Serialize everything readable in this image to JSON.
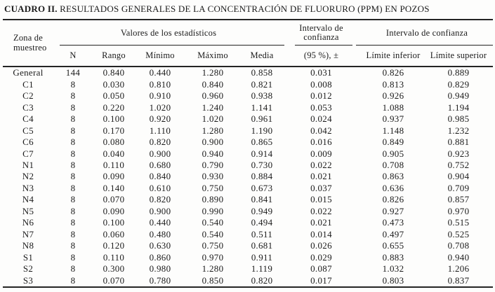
{
  "title": {
    "label": "CUADRO II.",
    "text": "RESULTADOS GENERALES DE LA CONCENTRACIÓN DE FLUORURO (PPM) EN POZOS"
  },
  "table": {
    "zone_header": {
      "line1": "Zona de",
      "line2": "muestreo"
    },
    "groups": {
      "statistics": "Valores de los estadísticos",
      "confidence_interval_pm": {
        "line1": "Intervalo de",
        "line2": "confianza"
      },
      "confidence_interval_limits": "Intervalo de confianza"
    },
    "columns": [
      "N",
      "Rango",
      "Mínimo",
      "Máximo",
      "Media",
      "(95 %), ±",
      "Límite inferior",
      "Límite superior"
    ],
    "rows": [
      {
        "zona": "General",
        "values": [
          "144",
          "0.840",
          "0.440",
          "1.280",
          "0.858",
          "0.031",
          "0.826",
          "0.889"
        ]
      },
      {
        "zona": "C1",
        "values": [
          "8",
          "0.030",
          "0.810",
          "0.840",
          "0.821",
          "0.008",
          "0.813",
          "0.829"
        ]
      },
      {
        "zona": "C2",
        "values": [
          "8",
          "0.050",
          "0.910",
          "0.960",
          "0.938",
          "0.012",
          "0.926",
          "0.949"
        ]
      },
      {
        "zona": "C3",
        "values": [
          "8",
          "0.220",
          "1.020",
          "1.240",
          "1.141",
          "0.053",
          "1.088",
          "1.194"
        ]
      },
      {
        "zona": "C4",
        "values": [
          "8",
          "0.100",
          "0.920",
          "1.020",
          "0.961",
          "0.024",
          "0.937",
          "0.985"
        ]
      },
      {
        "zona": "C5",
        "values": [
          "8",
          "0.170",
          "1.110",
          "1.280",
          "1.190",
          "0.042",
          "1.148",
          "1.232"
        ]
      },
      {
        "zona": "C6",
        "values": [
          "8",
          "0.080",
          "0.820",
          "0.900",
          "0.865",
          "0.016",
          "0.849",
          "0.881"
        ]
      },
      {
        "zona": "C7",
        "values": [
          "8",
          "0.040",
          "0.900",
          "0.940",
          "0.914",
          "0.009",
          "0.905",
          "0.923"
        ]
      },
      {
        "zona": "N1",
        "values": [
          "8",
          "0.110",
          "0.680",
          "0.790",
          "0.730",
          "0.022",
          "0.708",
          "0.752"
        ]
      },
      {
        "zona": "N2",
        "values": [
          "8",
          "0.090",
          "0.840",
          "0.930",
          "0.884",
          "0.021",
          "0.863",
          "0.904"
        ]
      },
      {
        "zona": "N3",
        "values": [
          "8",
          "0.140",
          "0.610",
          "0.750",
          "0.673",
          "0.037",
          "0.636",
          "0.709"
        ]
      },
      {
        "zona": "N4",
        "values": [
          "8",
          "0.070",
          "0.820",
          "0.890",
          "0.841",
          "0.015",
          "0.826",
          "0.857"
        ]
      },
      {
        "zona": "N5",
        "values": [
          "8",
          "0.090",
          "0.900",
          "0.990",
          "0.949",
          "0.022",
          "0.927",
          "0.970"
        ]
      },
      {
        "zona": "N6",
        "values": [
          "8",
          "0.100",
          "0.440",
          "0.540",
          "0.494",
          "0.021",
          "0.473",
          "0.515"
        ]
      },
      {
        "zona": "N7",
        "values": [
          "8",
          "0.060",
          "0.480",
          "0.540",
          "0.511",
          "0.014",
          "0.497",
          "0.525"
        ]
      },
      {
        "zona": "N8",
        "values": [
          "8",
          "0.120",
          "0.630",
          "0.750",
          "0.681",
          "0.026",
          "0.655",
          "0.708"
        ]
      },
      {
        "zona": "S1",
        "values": [
          "8",
          "0.110",
          "0.860",
          "0.970",
          "0.911",
          "0.029",
          "0.883",
          "0.940"
        ]
      },
      {
        "zona": "S2",
        "values": [
          "8",
          "0.300",
          "0.980",
          "1.280",
          "1.119",
          "0.087",
          "1.032",
          "1.206"
        ]
      },
      {
        "zona": "S3",
        "values": [
          "8",
          "0.070",
          "0.780",
          "0.850",
          "0.820",
          "0.017",
          "0.803",
          "0.837"
        ]
      }
    ]
  }
}
